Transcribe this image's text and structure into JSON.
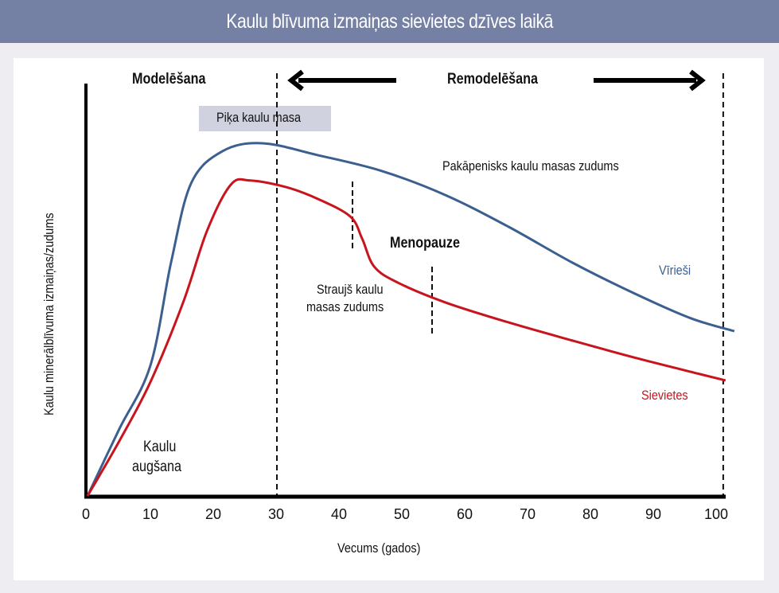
{
  "header": {
    "title": "Kaulu blīvuma izmaiņas sievietes dzīves laikā"
  },
  "annotations": {
    "modeling": "Modelēšana",
    "remodeling": "Remodelēšana",
    "peak": "Piķa kaulu masa",
    "gradual_loss": "Pakāpenisks kaulu masas zudums",
    "menopause": "Menopauze",
    "rapid_loss_1": "Straujš kaulu",
    "rapid_loss_2": "masas zudums",
    "growth_1": "Kaulu",
    "growth_2": "augšana"
  },
  "colors": {
    "men": "#3b5f8e",
    "women": "#c8141c",
    "header": "#7480a4",
    "peak_box": "#d0d2e0"
  },
  "chart_data": {
    "type": "line",
    "title": "Kaulu blīvuma izmaiņas sievietes dzīves laikā",
    "xlabel": "Vecums (gados)",
    "ylabel": "Kaulu minerālblīvuma izmaiņas/zudums",
    "xlim": [
      0,
      103
    ],
    "ylim": [
      0,
      100
    ],
    "xticks": [
      0,
      10,
      20,
      30,
      40,
      50,
      60,
      70,
      80,
      90,
      100
    ],
    "grid": false,
    "vlines": [
      30,
      101
    ],
    "series": [
      {
        "name": "Vīrieši",
        "color": "#3b5f8e",
        "points": [
          [
            0,
            0
          ],
          [
            5,
            16
          ],
          [
            10,
            31.5
          ],
          [
            13.3,
            56.5
          ],
          [
            16.5,
            75.6
          ],
          [
            21.5,
            83.3
          ],
          [
            27.8,
            85.2
          ],
          [
            36.7,
            82.3
          ],
          [
            46.8,
            78.5
          ],
          [
            56.9,
            72.7
          ],
          [
            67,
            65
          ],
          [
            77.2,
            56.3
          ],
          [
            87.3,
            48.7
          ],
          [
            96,
            42.9
          ],
          [
            102.9,
            39.8
          ]
        ]
      },
      {
        "name": "Sievietes",
        "color": "#c8141c",
        "points": [
          [
            0,
            0
          ],
          [
            5,
            13.1
          ],
          [
            10,
            27.5
          ],
          [
            15.2,
            46.7
          ],
          [
            19,
            64
          ],
          [
            22.8,
            75.2
          ],
          [
            25.9,
            76.2
          ],
          [
            31.6,
            74.6
          ],
          [
            36.7,
            71.7
          ],
          [
            41.8,
            67.5
          ],
          [
            43.7,
            62.1
          ],
          [
            45.6,
            55.4
          ],
          [
            49.4,
            51.5
          ],
          [
            57,
            46.7
          ],
          [
            67,
            41.9
          ],
          [
            77.2,
            37.5
          ],
          [
            87.3,
            33.3
          ],
          [
            97.5,
            29.4
          ],
          [
            101.5,
            27.9
          ]
        ]
      }
    ]
  }
}
